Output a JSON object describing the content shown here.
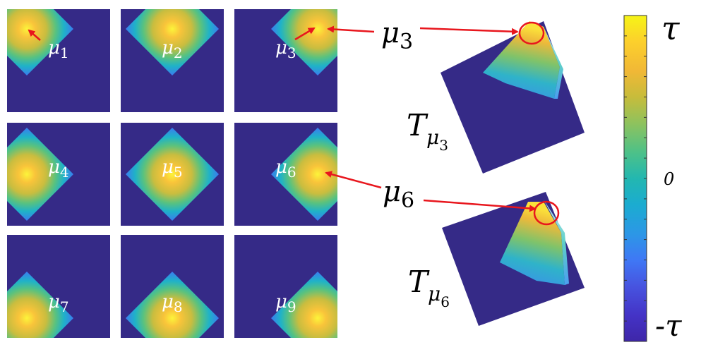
{
  "tiles": [
    {
      "label": "μ",
      "sub": "1"
    },
    {
      "label": "μ",
      "sub": "2"
    },
    {
      "label": "μ",
      "sub": "3"
    },
    {
      "label": "μ",
      "sub": "4"
    },
    {
      "label": "μ",
      "sub": "5"
    },
    {
      "label": "μ",
      "sub": "6"
    },
    {
      "label": "μ",
      "sub": "7"
    },
    {
      "label": "μ",
      "sub": "8"
    },
    {
      "label": "μ",
      "sub": "9"
    }
  ],
  "callouts": {
    "mu3": {
      "label": "μ",
      "sub": "3"
    },
    "mu6": {
      "label": "μ",
      "sub": "6"
    }
  },
  "surfaces": {
    "top": {
      "label": "T",
      "sub_label": "μ",
      "sub_sub": "3"
    },
    "bottom": {
      "label": "T",
      "sub_label": "μ",
      "sub_sub": "6"
    }
  },
  "colorbar": {
    "top_label": "τ",
    "mid_label": "0",
    "bottom_label": "-τ",
    "colormap": [
      "#3e26a8",
      "#4433c6",
      "#4754e0",
      "#3f78f5",
      "#2c97e6",
      "#1bacd0",
      "#23b7b0",
      "#4dc188",
      "#8fc25d",
      "#c7bc3b",
      "#f1b836",
      "#fcd02c",
      "#f6f416"
    ]
  },
  "colors": {
    "background_field": "#352a87",
    "arrow": "#e8161d"
  }
}
